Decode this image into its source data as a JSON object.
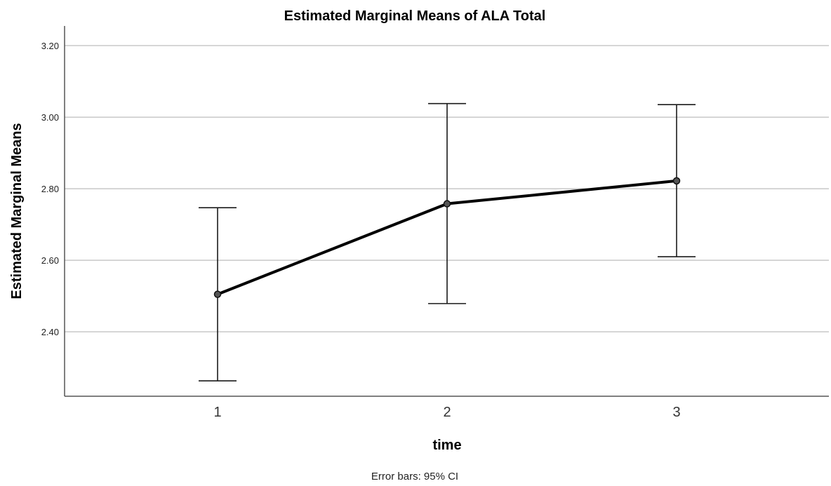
{
  "chart_data": {
    "type": "line",
    "title": "Estimated Marginal Means of ALA Total",
    "xlabel": "time",
    "ylabel": "Estimated Marginal Means",
    "note": "Error bars: 95% CI",
    "categories": [
      "1",
      "2",
      "3"
    ],
    "series": [
      {
        "values": [
          2.505,
          2.758,
          2.822
        ],
        "ci_lower": [
          2.263,
          2.479,
          2.61
        ],
        "ci_upper": [
          2.747,
          3.038,
          3.035
        ]
      }
    ],
    "yticks": [
      "2.40",
      "2.60",
      "2.80",
      "3.00",
      "3.20"
    ],
    "ylim": [
      2.22,
      3.255
    ],
    "grid": true,
    "colors": {
      "line": "#000000",
      "grid": "#c8c8c8",
      "marker": "#555555"
    }
  }
}
